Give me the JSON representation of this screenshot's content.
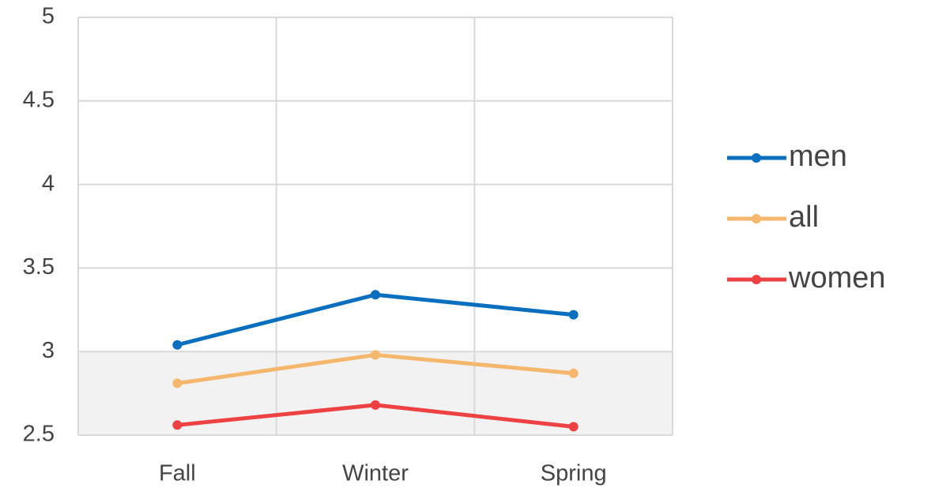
{
  "chart_data": {
    "type": "line",
    "categories": [
      "Fall",
      "Winter",
      "Spring"
    ],
    "series": [
      {
        "name": "men",
        "color": "#0a6fbf",
        "values": [
          3.04,
          3.34,
          3.22
        ]
      },
      {
        "name": "all",
        "color": "#f4b76b",
        "values": [
          2.81,
          2.98,
          2.87
        ]
      },
      {
        "name": "women",
        "color": "#ee4144",
        "values": [
          2.56,
          2.68,
          2.55
        ]
      }
    ],
    "ylim": [
      2.5,
      5
    ],
    "yticks": [
      2.5,
      3,
      3.5,
      4,
      4.5,
      5
    ],
    "grid": true,
    "legend": "right",
    "shaded_range": [
      2.5,
      3
    ],
    "shaded_color": "#f2f2f2"
  }
}
